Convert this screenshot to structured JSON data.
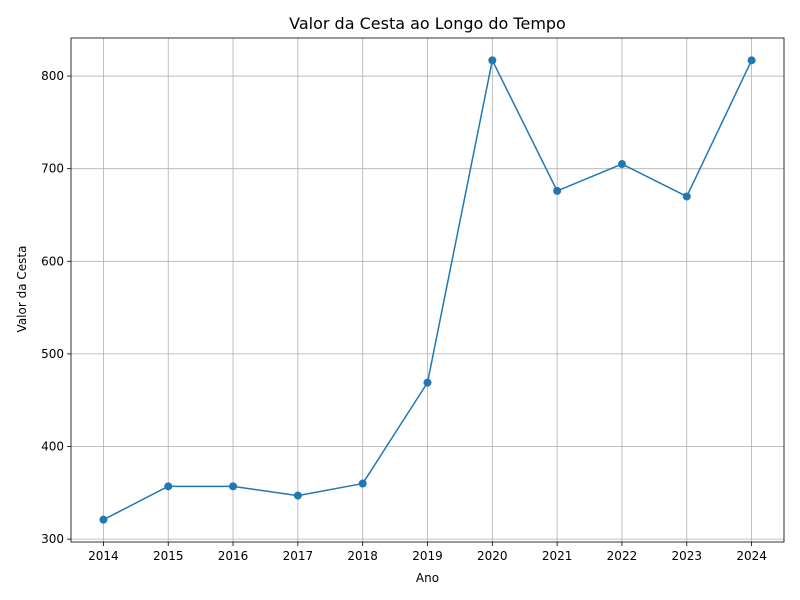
{
  "chart_data": {
    "type": "line",
    "title": "Valor da Cesta ao Longo do Tempo",
    "xlabel": "Ano",
    "ylabel": "Valor da Cesta",
    "categories": [
      "2014",
      "2015",
      "2016",
      "2017",
      "2018",
      "2019",
      "2020",
      "2021",
      "2022",
      "2023",
      "2024"
    ],
    "series": [
      {
        "values": [
          321,
          357,
          357,
          347,
          360,
          469,
          817,
          676,
          705,
          670,
          817
        ],
        "color": "#1f77b4",
        "marker": "circle"
      }
    ],
    "yticks": [
      300,
      400,
      500,
      600,
      700,
      800
    ],
    "ylim": [
      296.9,
      841.1
    ],
    "grid": true,
    "legend": "none"
  }
}
